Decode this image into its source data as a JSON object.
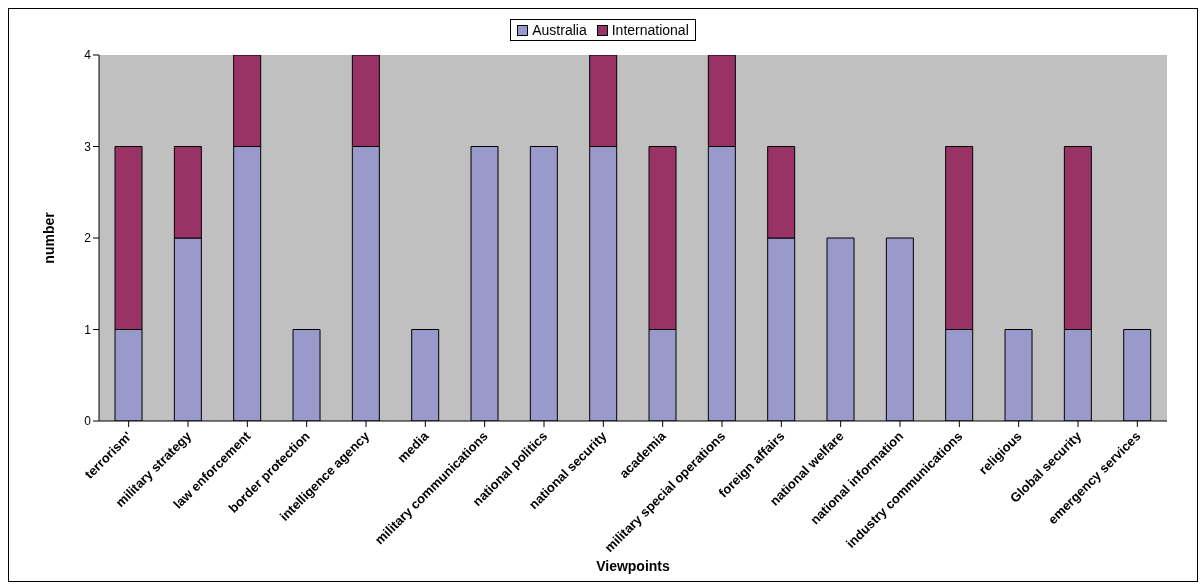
{
  "chart_data": {
    "type": "bar",
    "stacked": true,
    "xlabel": "Viewpoints",
    "ylabel": "number",
    "categories": [
      "terrorism'",
      "military strategy",
      "law enforcement",
      "border protection",
      "intelligence agency",
      "media",
      "military communications",
      "national politics",
      "national security",
      "academia",
      "military special operations",
      "foreign affairs",
      "national welfare",
      "national information",
      "industry communications",
      "religious",
      "Global security",
      "emergency services"
    ],
    "series": [
      {
        "name": "Australia",
        "color": "#9999cc",
        "values": [
          1,
          2,
          3,
          1,
          3,
          1,
          3,
          3,
          3,
          1,
          3,
          2,
          2,
          2,
          1,
          1,
          1,
          1
        ]
      },
      {
        "name": "International",
        "color": "#993366",
        "values": [
          2,
          1,
          1,
          0,
          1,
          0,
          0,
          0,
          1,
          2,
          1,
          1,
          0,
          0,
          2,
          0,
          2,
          0
        ]
      }
    ],
    "ylim": [
      0,
      4
    ],
    "yticks": [
      0,
      1,
      2,
      3,
      4
    ],
    "grid": false,
    "legend": "top"
  }
}
